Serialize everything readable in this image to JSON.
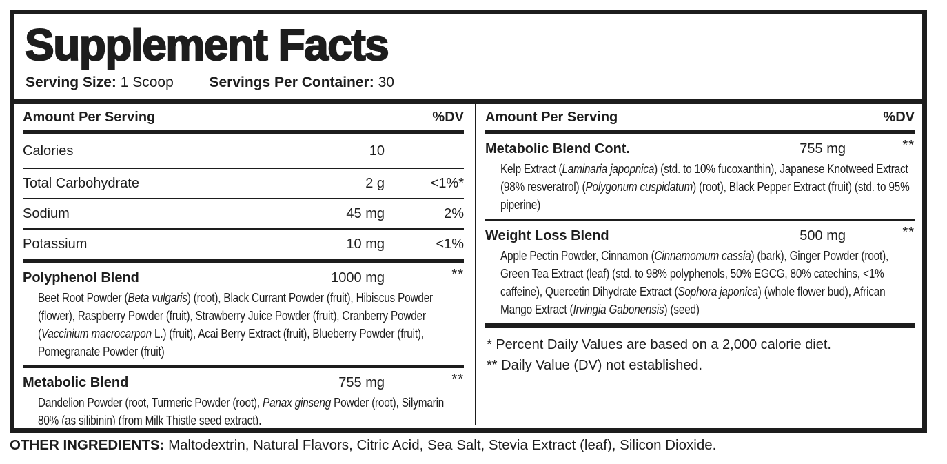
{
  "title": "Supplement Facts",
  "serving": {
    "size_label": "Serving Size:",
    "size_value": "1 Scoop",
    "per_container_label": "Servings Per Container:",
    "per_container_value": "30"
  },
  "columns": {
    "left": {
      "header": {
        "amount": "Amount Per Serving",
        "dv": "%DV"
      },
      "nutrients": [
        {
          "name": "Calories",
          "amount": "10",
          "dv": ""
        },
        {
          "name": "Total Carbohydrate",
          "amount": "2 g",
          "dv": "<1%*"
        },
        {
          "name": "Sodium",
          "amount": "45 mg",
          "dv": "2%"
        },
        {
          "name": "Potassium",
          "amount": "10 mg",
          "dv": "<1%"
        }
      ],
      "blends": [
        {
          "name": "Polyphenol Blend",
          "amount": "1000 mg",
          "dv": "**",
          "desc": [
            {
              "t": "Beet Root Powder ("
            },
            {
              "t": "Beta vulgaris",
              "i": true
            },
            {
              "t": ") (root), Black Currant Powder (fruit), Hibiscus Powder (flower), Raspberry Powder (fruit), Strawberry Juice Powder (fruit), Cranberry Powder ("
            },
            {
              "t": "Vaccinium macrocarpon",
              "i": true
            },
            {
              "t": " L.) (fruit), Acai Berry Extract (fruit), Blueberry Powder (fruit), Pomegranate Powder (fruit)"
            }
          ]
        },
        {
          "name": "Metabolic Blend",
          "amount": "755 mg",
          "dv": "**",
          "desc": [
            {
              "t": "Dandelion Powder (root, Turmeric Powder (root), "
            },
            {
              "t": "Panax ginseng",
              "i": true
            },
            {
              "t": " Powder (root), Silymarin 80% (as silibinin) (from Milk Thistle seed extract),"
            }
          ]
        }
      ]
    },
    "right": {
      "header": {
        "amount": "Amount Per Serving",
        "dv": "%DV"
      },
      "blends": [
        {
          "name": "Metabolic Blend Cont.",
          "amount": "755 mg",
          "dv": "**",
          "desc": [
            {
              "t": "Kelp Extract ("
            },
            {
              "t": "Laminaria japopnica",
              "i": true
            },
            {
              "t": ") (std. to 10% fucoxanthin), Japanese Knotweed Extract (98% resveratrol) ("
            },
            {
              "t": "Polygonum cuspidatum",
              "i": true
            },
            {
              "t": ") (root), Black Pepper Extract (fruit)  (std. to 95% piperine)"
            }
          ]
        },
        {
          "name": "Weight Loss Blend",
          "amount": "500 mg",
          "dv": "**",
          "desc": [
            {
              "t": "Apple Pectin Powder, Cinnamon ("
            },
            {
              "t": "Cinnamomum cassia",
              "i": true
            },
            {
              "t": ") (bark), Ginger Powder (root), Green Tea Extract (leaf) (std. to 98% polyphenols, 50% EGCG, 80% catechins, <1% caffeine), Quercetin Dihydrate Extract ("
            },
            {
              "t": "Sophora japonica",
              "i": true
            },
            {
              "t": ") (whole flower bud), African Mango Extract ("
            },
            {
              "t": "Irvingia Gabonensis",
              "i": true
            },
            {
              "t": ") (seed)"
            }
          ]
        }
      ],
      "footnotes": [
        "* Percent Daily Values are based on a 2,000 calorie diet.",
        "** Daily Value (DV) not established."
      ]
    }
  },
  "other_ingredients": {
    "label": "OTHER INGREDIENTS:",
    "value": "Maltodextrin, Natural Flavors, Citric Acid, Sea Salt, Stevia Extract (leaf), Silicon Dioxide."
  }
}
